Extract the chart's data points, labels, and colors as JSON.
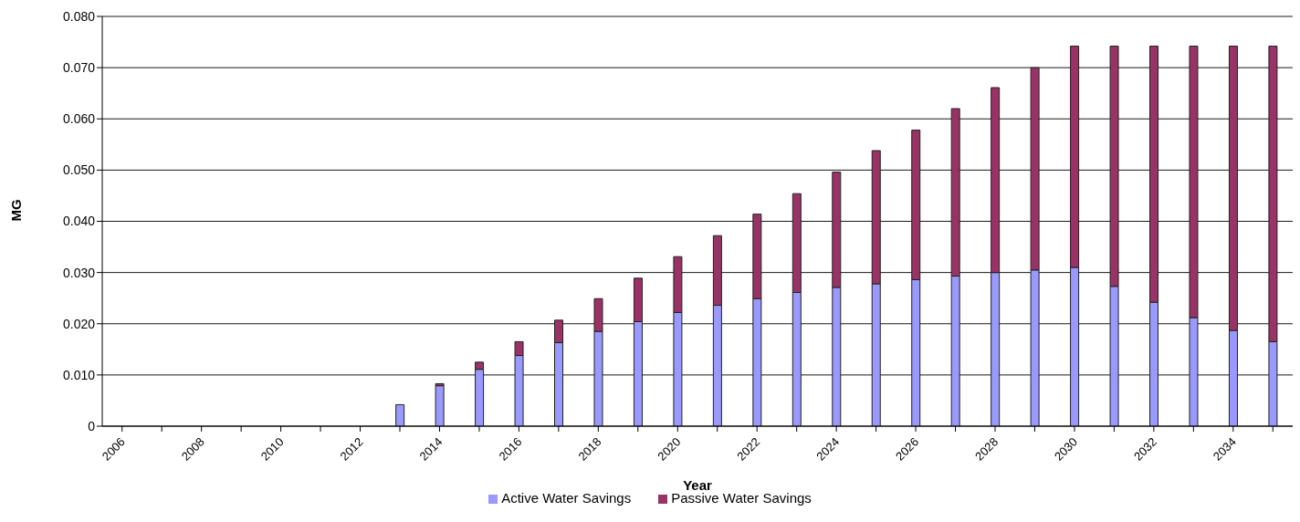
{
  "chart_data": {
    "type": "bar",
    "stacked": true,
    "xlabel": "Year",
    "ylabel": "MG",
    "categories": [
      "2006",
      null,
      "2008",
      null,
      "2010",
      null,
      "2012",
      null,
      "2014",
      null,
      "2016",
      null,
      "2018",
      null,
      "2020",
      null,
      "2022",
      null,
      "2024",
      null,
      "2026",
      null,
      "2028",
      null,
      "2030",
      null,
      "2032",
      null,
      "2034",
      null
    ],
    "series": [
      {
        "name": "Active Water Savings",
        "color": "#9999ff",
        "values": [
          0,
          0,
          0,
          0,
          0,
          0,
          0,
          0.0042,
          0.0079,
          0.0111,
          0.0138,
          0.0163,
          0.0185,
          0.0204,
          0.0222,
          0.0236,
          0.0249,
          0.0261,
          0.0271,
          0.0278,
          0.0286,
          0.0293,
          0.03,
          0.0305,
          0.031,
          0.0273,
          0.0242,
          0.0212,
          0.0187,
          0.0165
        ]
      },
      {
        "name": "Passive Water Savings",
        "color": "#993366",
        "values": [
          0,
          0,
          0,
          0,
          0,
          0,
          0,
          0,
          0.0004,
          0.0014,
          0.0027,
          0.0044,
          0.0064,
          0.0085,
          0.0109,
          0.0136,
          0.0165,
          0.0193,
          0.0225,
          0.026,
          0.0292,
          0.0327,
          0.0361,
          0.0395,
          0.0432,
          0.0469,
          0.05,
          0.053,
          0.0555,
          0.0577
        ]
      }
    ],
    "ylim": [
      0,
      0.08
    ],
    "yticks": [
      0,
      {
        "value": 0.01,
        "label": "0.010"
      },
      {
        "value": 0.02,
        "label": "0.020"
      },
      {
        "value": 0.03,
        "label": "0.030"
      },
      {
        "value": 0.04,
        "label": "0.040"
      },
      {
        "value": 0.05,
        "label": "0.050"
      },
      {
        "value": 0.06,
        "label": "0.060"
      },
      {
        "value": 0.07,
        "label": "0.070"
      },
      {
        "value": 0.08,
        "label": "0.080"
      }
    ],
    "grid": "y",
    "legend": "bottom"
  }
}
